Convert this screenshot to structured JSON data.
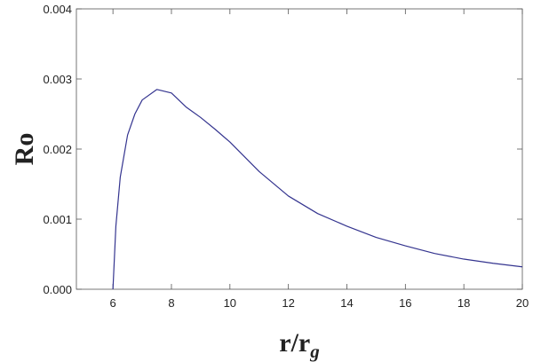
{
  "chart_data": {
    "type": "line",
    "ylabel": "Ro",
    "xlabel": "r/r",
    "xlabel_sub": "g",
    "x": [
      6,
      6.1,
      6.25,
      6.5,
      6.75,
      7,
      7.5,
      8,
      8.5,
      9,
      9.5,
      10,
      11,
      12,
      13,
      14,
      15,
      16,
      17,
      18,
      19,
      20
    ],
    "series": [
      {
        "color": "#34348f",
        "values": [
          0,
          0.0009,
          0.0016,
          0.0022,
          0.0025,
          0.0027,
          0.00285,
          0.0028,
          0.0026,
          0.00245,
          0.00228,
          0.0021,
          0.00168,
          0.00133,
          0.00108,
          0.0009,
          0.00074,
          0.00062,
          0.00051,
          0.00043,
          0.00037,
          0.00032
        ]
      }
    ],
    "xlim": [
      4.75,
      20
    ],
    "ylim": [
      0,
      0.004
    ],
    "xticks": [
      6,
      8,
      10,
      12,
      14,
      16,
      18,
      20
    ],
    "yticks": [
      {
        "value": 0,
        "label": "0.000"
      },
      0.001,
      0.002,
      0.003,
      0.004
    ]
  }
}
